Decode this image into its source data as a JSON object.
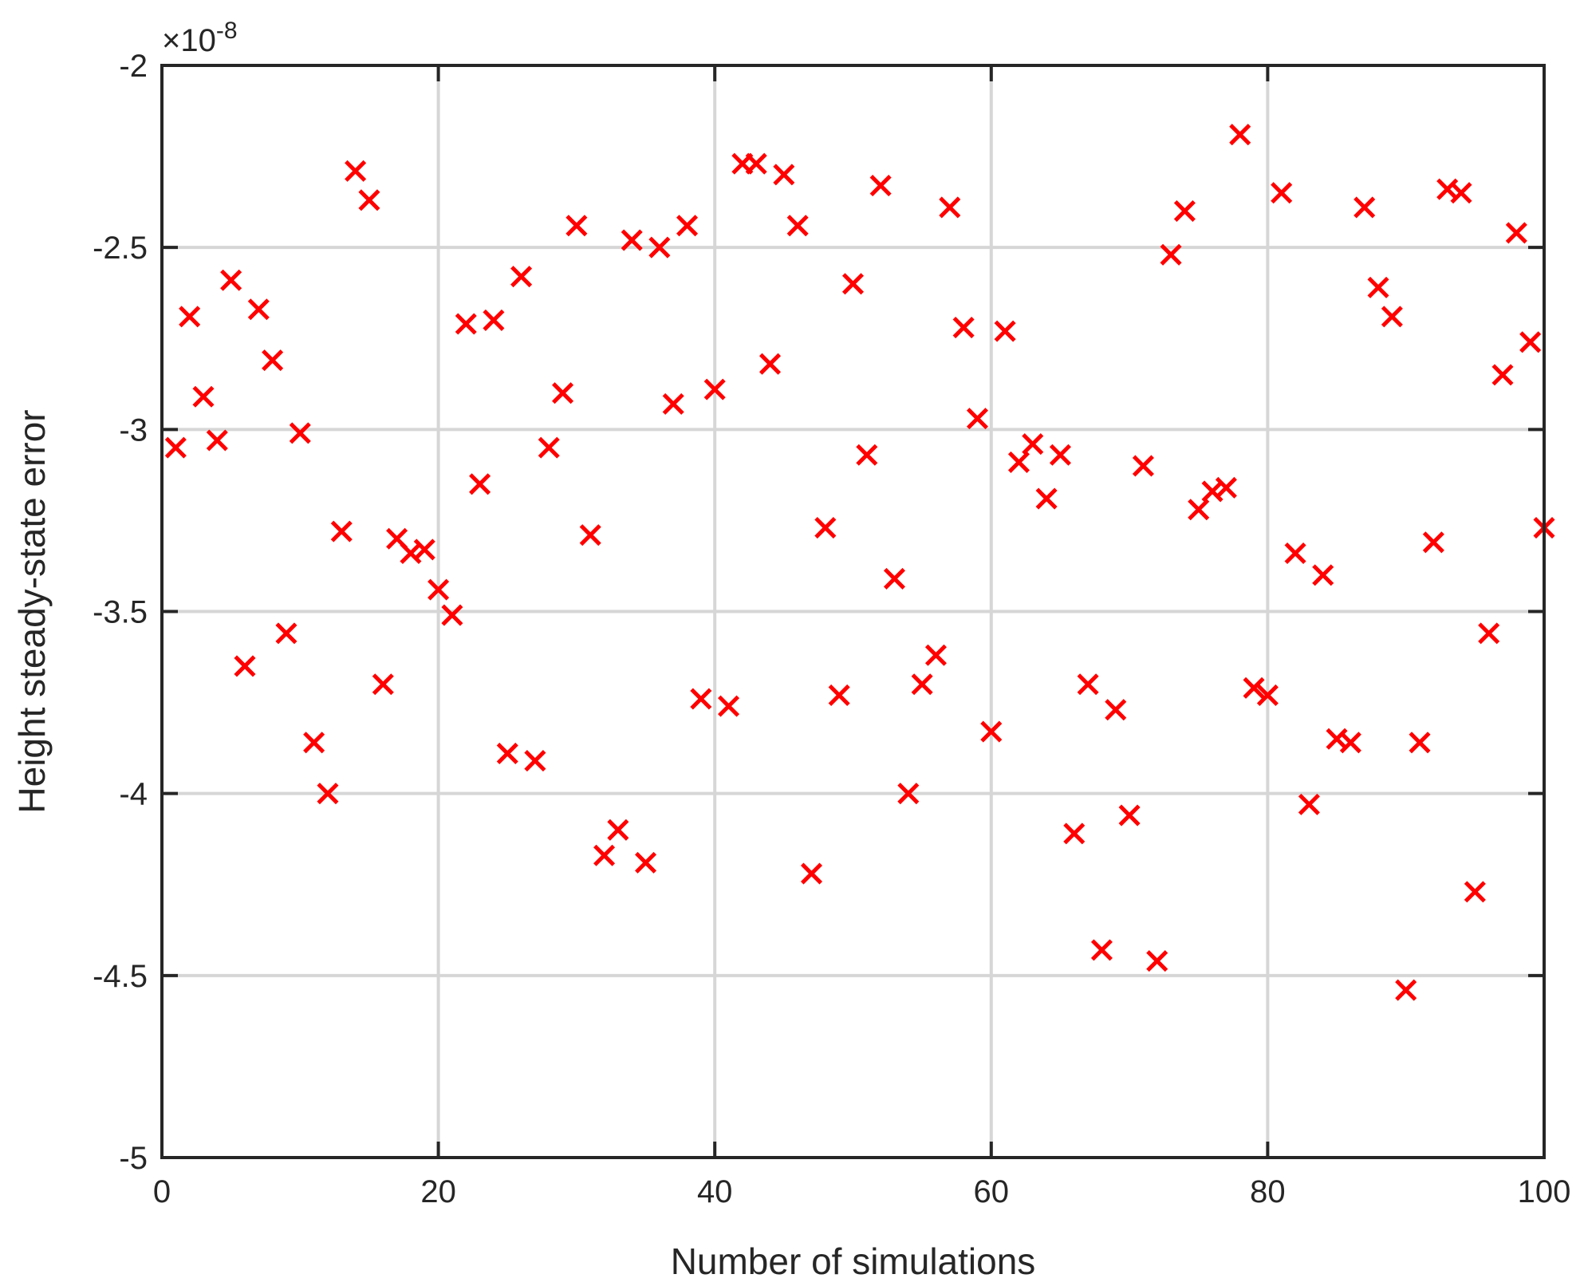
{
  "chart_data": {
    "type": "scatter",
    "title": "",
    "xlabel": "Number of simulations",
    "ylabel": "Height steady-state error",
    "y_multiplier": "×10",
    "y_multiplier_exponent": "-8",
    "xlim": [
      0,
      100
    ],
    "ylim": [
      -5,
      -2
    ],
    "x_ticks": [
      0,
      20,
      40,
      60,
      80,
      100
    ],
    "x_tick_labels": [
      "0",
      "20",
      "40",
      "60",
      "80",
      "100"
    ],
    "y_ticks": [
      -5,
      -4.5,
      -4,
      -3.5,
      -3,
      -2.5,
      -2
    ],
    "y_tick_labels": [
      "-5",
      "-4.5",
      "-4",
      "-3.5",
      "-3",
      "-2.5",
      "-2"
    ],
    "grid": true,
    "marker": "x",
    "marker_color": "#ff0000",
    "series": [
      {
        "x": [
          1,
          2,
          3,
          4,
          5,
          6,
          7,
          8,
          9,
          10,
          11,
          12,
          13,
          14,
          15,
          16,
          17,
          18,
          19,
          20,
          21,
          22,
          23,
          24,
          25,
          26,
          27,
          28,
          29,
          30,
          31,
          32,
          33,
          34,
          35,
          36,
          37,
          38,
          39,
          40,
          41,
          42,
          43,
          44,
          45,
          46,
          47,
          48,
          49,
          50,
          51,
          52,
          53,
          54,
          55,
          56,
          57,
          58,
          59,
          60,
          61,
          62,
          63,
          64,
          65,
          66,
          67,
          68,
          69,
          70,
          71,
          72,
          73,
          74,
          75,
          76,
          77,
          78,
          79,
          80,
          81,
          82,
          83,
          84,
          85,
          86,
          87,
          88,
          89,
          90,
          91,
          92,
          93,
          94,
          95,
          96,
          97,
          98,
          99,
          100
        ],
        "y": [
          -3.05,
          -2.69,
          -2.91,
          -3.03,
          -2.59,
          -3.65,
          -2.67,
          -2.81,
          -3.56,
          -3.01,
          -3.86,
          -4.0,
          -3.28,
          -2.29,
          -2.37,
          -3.7,
          -3.3,
          -3.34,
          -3.33,
          -3.44,
          -3.51,
          -2.71,
          -3.15,
          -2.7,
          -3.89,
          -2.58,
          -3.91,
          -3.05,
          -2.9,
          -2.44,
          -3.29,
          -4.17,
          -4.1,
          -2.48,
          -4.19,
          -2.5,
          -2.93,
          -2.44,
          -3.74,
          -2.89,
          -3.76,
          -2.27,
          -2.27,
          -2.82,
          -2.3,
          -2.44,
          -4.22,
          -3.27,
          -3.73,
          -2.6,
          -3.07,
          -2.33,
          -3.41,
          -4.0,
          -3.7,
          -3.62,
          -2.39,
          -2.72,
          -2.97,
          -3.83,
          -2.73,
          -3.09,
          -3.04,
          -3.19,
          -3.07,
          -4.11,
          -3.7,
          -4.43,
          -3.77,
          -4.06,
          -3.1,
          -4.46,
          -2.52,
          -2.4,
          -3.22,
          -3.17,
          -3.16,
          -2.19,
          -3.71,
          -3.73,
          -2.35,
          -3.34,
          -4.03,
          -3.4,
          -3.85,
          -3.86,
          -2.39,
          -2.61,
          -2.69,
          -4.54,
          -3.86,
          -3.31,
          -2.34,
          -2.35,
          -4.27,
          -3.56,
          -2.85,
          -2.46,
          -2.76,
          -3.27
        ]
      }
    ]
  }
}
